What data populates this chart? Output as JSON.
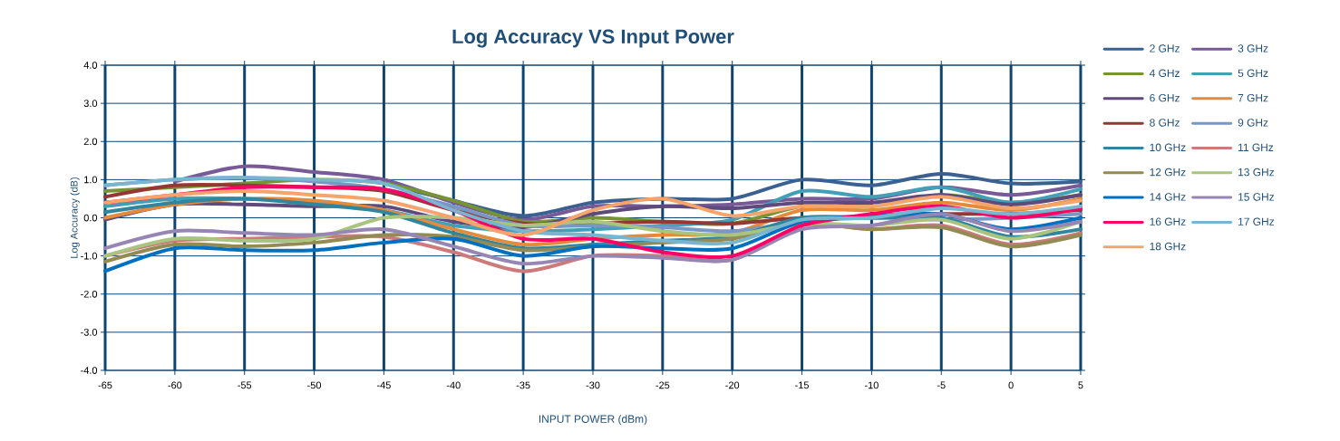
{
  "chart_data": {
    "type": "line",
    "title": "Log Accuracy VS Input Power",
    "xlabel": "INPUT POWER (dBm)",
    "ylabel": "Log Accuracy (dB)",
    "x": [
      -65,
      -60,
      -55,
      -50,
      -45,
      -40,
      -35,
      -30,
      -25,
      -20,
      -15,
      -10,
      -5,
      0,
      5
    ],
    "xlim": [
      -65,
      5
    ],
    "xticks": [
      -65,
      -60,
      -55,
      -50,
      -45,
      -40,
      -35,
      -30,
      -25,
      -20,
      -15,
      -10,
      -5,
      0,
      5
    ],
    "ylim": [
      -4,
      4
    ],
    "yticks": [
      {
        "value": -4,
        "label": "-4.0"
      },
      {
        "value": -3,
        "label": "-3.0"
      },
      {
        "value": -2,
        "label": "-2.0"
      },
      {
        "value": -1,
        "label": "-1.0"
      },
      {
        "value": 0,
        "label": "0.0"
      },
      {
        "value": 1,
        "label": "1.0"
      },
      {
        "value": 2,
        "label": "2.0"
      },
      {
        "value": 3,
        "label": "3.0"
      },
      {
        "value": 4,
        "label": "4.0"
      }
    ],
    "grid": true,
    "legend": "right",
    "series": [
      {
        "name": "2 GHz",
        "color": "#3b6192",
        "values": [
          null,
          null,
          null,
          null,
          0.9,
          0.45,
          0.05,
          0.4,
          0.5,
          0.5,
          1.0,
          0.85,
          1.15,
          0.9,
          0.95
        ]
      },
      {
        "name": "3 GHz",
        "color": "#775a96",
        "values": [
          null,
          0.95,
          1.35,
          1.2,
          1.0,
          0.4,
          -0.05,
          0.3,
          0.3,
          0.35,
          0.5,
          0.5,
          0.8,
          0.6,
          0.85
        ]
      },
      {
        "name": "4 GHz",
        "color": "#779435",
        "values": [
          0.7,
          0.8,
          0.9,
          1.0,
          0.9,
          0.45,
          -0.1,
          0.0,
          -0.1,
          -0.15,
          0.3,
          0.3,
          0.6,
          0.4,
          0.6
        ]
      },
      {
        "name": "5 GHz",
        "color": "#42a0b6",
        "values": [
          0.3,
          0.5,
          0.5,
          0.4,
          0.2,
          -0.2,
          -0.35,
          -0.3,
          -0.2,
          -0.05,
          0.7,
          0.55,
          0.8,
          0.4,
          0.75
        ]
      },
      {
        "name": "6 GHz",
        "color": "#5f4a7d",
        "values": [
          -0.05,
          0.35,
          0.35,
          0.3,
          0.3,
          -0.1,
          -0.25,
          0.1,
          0.3,
          0.25,
          0.4,
          0.4,
          0.6,
          0.35,
          0.6
        ]
      },
      {
        "name": "7 GHz",
        "color": "#e58a3a",
        "values": [
          0.0,
          0.35,
          0.5,
          0.45,
          0.2,
          -0.3,
          -0.7,
          -0.55,
          -0.45,
          -0.4,
          0.2,
          0.2,
          0.4,
          0.2,
          0.5
        ]
      },
      {
        "name": "8 GHz",
        "color": "#953735",
        "values": [
          0.55,
          0.85,
          0.85,
          0.8,
          0.7,
          0.2,
          -0.15,
          -0.15,
          -0.1,
          -0.15,
          0.0,
          0.0,
          0.1,
          0.1,
          0.2
        ]
      },
      {
        "name": "9 GHz",
        "color": "#7a96c4",
        "values": [
          0.85,
          1.0,
          1.05,
          0.95,
          0.75,
          0.3,
          -0.2,
          -0.2,
          -0.25,
          -0.35,
          -0.1,
          0.0,
          -0.05,
          0.0,
          0.1
        ]
      },
      {
        "name": "10 GHz",
        "color": "#31859c",
        "values": [
          0.15,
          0.4,
          0.5,
          0.35,
          0.15,
          -0.4,
          -0.8,
          -0.7,
          -0.6,
          -0.5,
          0.0,
          0.0,
          0.0,
          -0.5,
          -0.3
        ]
      },
      {
        "name": "11 GHz",
        "color": "#cc7a7a",
        "values": [
          -1.0,
          -0.6,
          -0.55,
          -0.5,
          -0.5,
          -0.9,
          -1.4,
          -1.0,
          -1.0,
          -1.1,
          -0.2,
          -0.3,
          -0.2,
          -0.7,
          -0.4
        ]
      },
      {
        "name": "12 GHz",
        "color": "#948a54",
        "values": [
          -1.15,
          -0.7,
          -0.75,
          -0.65,
          -0.45,
          -0.5,
          -0.85,
          -0.75,
          -0.65,
          -0.55,
          -0.15,
          -0.3,
          -0.25,
          -0.75,
          -0.45
        ]
      },
      {
        "name": "13 GHz",
        "color": "#a9c47f",
        "values": [
          -1.0,
          -0.55,
          -0.6,
          -0.55,
          0.0,
          0.0,
          -0.2,
          -0.1,
          -0.35,
          -0.45,
          -0.15,
          -0.2,
          -0.05,
          -0.55,
          -0.1
        ]
      },
      {
        "name": "14 GHz",
        "color": "#0070c0",
        "values": [
          -1.4,
          -0.8,
          -0.85,
          -0.85,
          -0.65,
          -0.55,
          -1.0,
          -0.75,
          -0.8,
          -0.8,
          -0.1,
          0.05,
          0.1,
          -0.3,
          0.0
        ]
      },
      {
        "name": "15 GHz",
        "color": "#9785b4",
        "values": [
          -0.8,
          -0.35,
          -0.4,
          -0.45,
          -0.3,
          -0.75,
          -1.2,
          -1.0,
          -1.05,
          -1.1,
          -0.3,
          -0.2,
          0.1,
          -0.35,
          -0.1
        ]
      },
      {
        "name": "16 GHz",
        "color": "#ff0066",
        "values": [
          0.4,
          0.6,
          0.8,
          0.8,
          0.75,
          0.2,
          -0.55,
          -0.55,
          -0.9,
          -1.0,
          -0.2,
          0.1,
          0.3,
          0.0,
          0.25
        ]
      },
      {
        "name": "17 GHz",
        "color": "#77b6ce",
        "values": [
          0.85,
          1.0,
          1.05,
          1.0,
          0.9,
          0.2,
          -0.35,
          -0.45,
          -0.6,
          -0.65,
          -0.05,
          0.0,
          0.25,
          0.1,
          0.3
        ]
      },
      {
        "name": "18 GHz",
        "color": "#f5a46c",
        "values": [
          0.4,
          0.6,
          0.7,
          0.6,
          0.45,
          0.0,
          -0.45,
          0.2,
          0.5,
          0.05,
          0.3,
          0.3,
          0.55,
          0.25,
          0.45
        ]
      }
    ]
  }
}
